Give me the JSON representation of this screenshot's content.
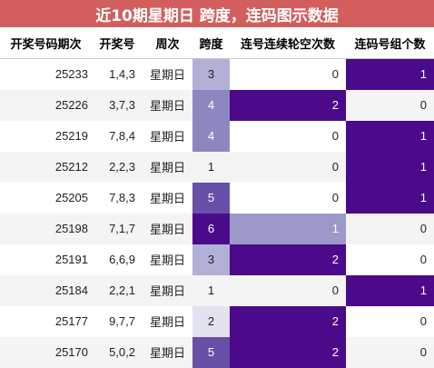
{
  "title": "近10期星期日 跨度，连码图示数据",
  "headers": [
    "开奖号码期次",
    "开奖号",
    "周次",
    "跨度",
    "连号连续轮空次数",
    "连码号组个数"
  ],
  "colors": {
    "title_bg": "#d25f5e",
    "span_scale": {
      "1": "#ffffff",
      "2": "#e3e3f0",
      "3": "#b3b0d8",
      "4": "#8d87c0",
      "5": "#6750a8",
      "6": "#4b0a8a"
    },
    "miss_scale": {
      "0": "#ffffff",
      "1": "#9c98ca",
      "2": "#4b0a8a"
    },
    "group_scale": {
      "0": "#ffffff",
      "1": "#4b0a8a"
    }
  },
  "rows": [
    {
      "issue": "25233",
      "numbers": "1,4,3",
      "weekday": "星期日",
      "span": "3",
      "miss": "0",
      "groups": "1"
    },
    {
      "issue": "25226",
      "numbers": "3,7,3",
      "weekday": "星期日",
      "span": "4",
      "miss": "2",
      "groups": "0"
    },
    {
      "issue": "25219",
      "numbers": "7,8,4",
      "weekday": "星期日",
      "span": "4",
      "miss": "0",
      "groups": "1"
    },
    {
      "issue": "25212",
      "numbers": "2,2,3",
      "weekday": "星期日",
      "span": "1",
      "miss": "0",
      "groups": "1"
    },
    {
      "issue": "25205",
      "numbers": "7,8,3",
      "weekday": "星期日",
      "span": "5",
      "miss": "0",
      "groups": "1"
    },
    {
      "issue": "25198",
      "numbers": "7,1,7",
      "weekday": "星期日",
      "span": "6",
      "miss": "1",
      "groups": "0"
    },
    {
      "issue": "25191",
      "numbers": "6,6,9",
      "weekday": "星期日",
      "span": "3",
      "miss": "2",
      "groups": "0"
    },
    {
      "issue": "25184",
      "numbers": "2,2,1",
      "weekday": "星期日",
      "span": "1",
      "miss": "0",
      "groups": "1"
    },
    {
      "issue": "25177",
      "numbers": "9,7,7",
      "weekday": "星期日",
      "span": "2",
      "miss": "2",
      "groups": "0"
    },
    {
      "issue": "25170",
      "numbers": "5,0,2",
      "weekday": "星期日",
      "span": "5",
      "miss": "2",
      "groups": "0"
    }
  ]
}
